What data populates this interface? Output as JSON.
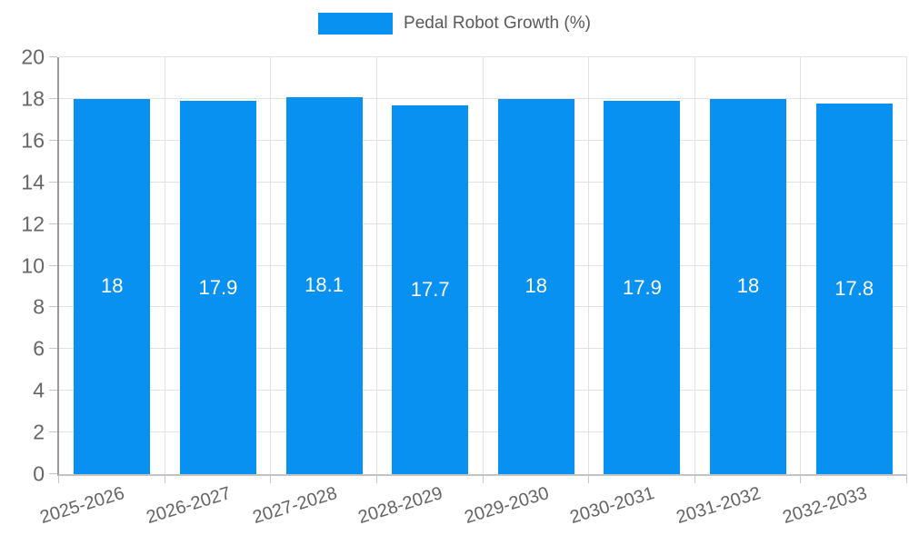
{
  "chart_data": {
    "type": "bar",
    "title": "Pedal Robot Growth (%)",
    "legend": {
      "label": "Pedal Robot Growth (%)",
      "position": "top"
    },
    "categories": [
      "2025-2026",
      "2026-2027",
      "2027-2028",
      "2028-2029",
      "2029-2030",
      "2030-2031",
      "2031-2032",
      "2032-2033"
    ],
    "series": [
      {
        "name": "Pedal Robot Growth (%)",
        "values": [
          18,
          17.9,
          18.1,
          17.7,
          18,
          17.9,
          18,
          17.8
        ]
      }
    ],
    "value_labels": [
      "18",
      "17.9",
      "18.1",
      "17.7",
      "18",
      "17.9",
      "18",
      "17.8"
    ],
    "xlabel": "",
    "ylabel": "",
    "ylim": [
      0,
      20
    ],
    "yticks": [
      0,
      2,
      4,
      6,
      8,
      10,
      12,
      14,
      16,
      18,
      20
    ],
    "grid": true,
    "x_label_rotation_deg": -17,
    "colors": {
      "bar": "#0991f2",
      "value_label": "#ffffff",
      "tick_label": "#666666",
      "legend_text": "#58595b",
      "gridline": "#e2e2e2",
      "y_axis_line": "#9a9a9a",
      "x_axis_line": "#c3c3c3",
      "background": "#ffffff"
    }
  }
}
